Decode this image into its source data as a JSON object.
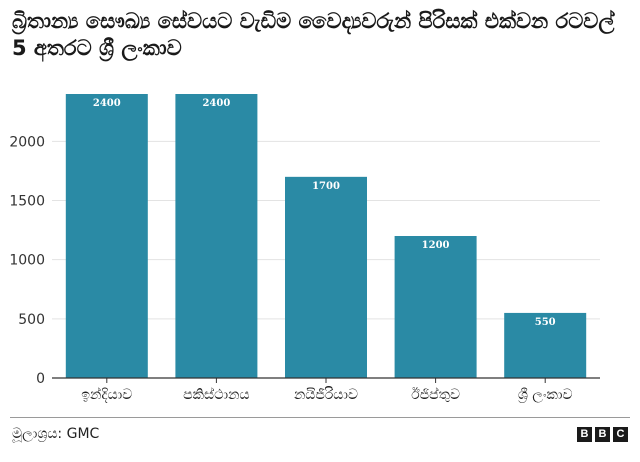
{
  "chart_data": {
    "type": "bar",
    "title": "බ්‍රිතාන්‍ය සෞඛ්‍ය සේවයට වැඩිම වෛද්‍යවරුන් පිරිසක් එක්වන රටවල් 5 අතරට ශ්‍රී ලංකාව",
    "categories": [
      "ඉන්දියාව",
      "පකිස්ථානය",
      "නයිජීරියාව",
      "ඊජිප්තුව",
      "ශ්‍රී ලංකාව"
    ],
    "values": [
      2400,
      2400,
      1700,
      1200,
      550
    ],
    "data_labels": [
      "2400",
      "2400",
      "1700",
      "1200",
      "550"
    ],
    "yticks": [
      "0",
      "500",
      "1000",
      "1500",
      "2000"
    ],
    "ylim": [
      0,
      2400
    ],
    "xlabel": "",
    "ylabel": "",
    "grid": true,
    "legend": "none",
    "bar_color": "#2a8aa5",
    "grid_color": "#e3e3e3"
  },
  "footer": {
    "source_label": "මූලාශ්‍රය:",
    "source_value": "GMC",
    "logo_letters": [
      "B",
      "B",
      "C"
    ]
  }
}
